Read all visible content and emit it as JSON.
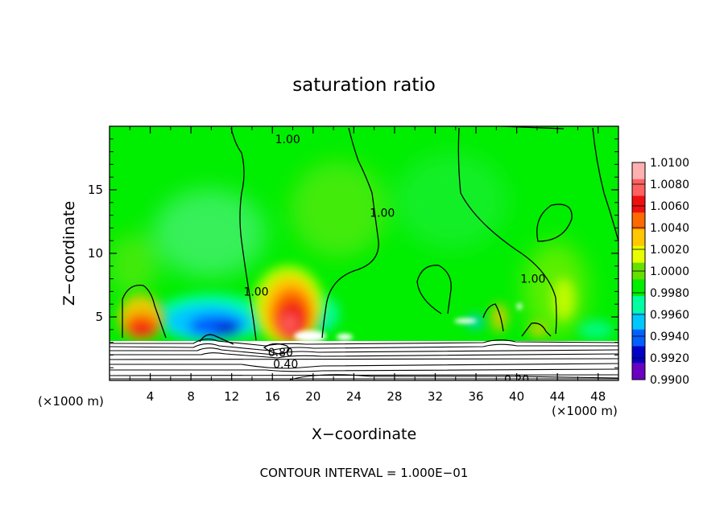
{
  "chart_data": {
    "type": "heatmap",
    "title": "saturation ratio",
    "xlabel": "X−coordinate",
    "ylabel": "Z−coordinate",
    "x_unit_label_left": "(×1000 m)",
    "x_unit_label_right": "(×1000 m)",
    "footer": "CONTOUR INTERVAL = 1.000E−01",
    "xlim": [
      0,
      50
    ],
    "ylim": [
      0,
      20
    ],
    "x_ticks": [
      4,
      8,
      12,
      16,
      20,
      24,
      28,
      32,
      36,
      40,
      44,
      48
    ],
    "y_ticks": [
      5,
      10,
      15
    ],
    "grid": false,
    "legend_position": "right",
    "colorbar": {
      "levels": [
        "1.0100",
        "1.0080",
        "1.0060",
        "1.0040",
        "1.0020",
        "1.0000",
        "0.9980",
        "0.9960",
        "0.9940",
        "0.9920",
        "0.9900"
      ],
      "colors": [
        "#ffb0b0",
        "#ff6060",
        "#ee1010",
        "#ff6a00",
        "#ffc800",
        "#e8ff00",
        "#66e000",
        "#00ee00",
        "#00ffa0",
        "#00c8ff",
        "#0060ff",
        "#0000c8",
        "#6a00c0"
      ]
    },
    "contour_labels": [
      {
        "text": "1.00",
        "x": 17.5,
        "z": 19.0
      },
      {
        "text": "1.00",
        "x": 26.8,
        "z": 13.2
      },
      {
        "text": "1.00",
        "x": 14.4,
        "z": 7.0
      },
      {
        "text": "1.00",
        "x": 41.6,
        "z": 8.0
      },
      {
        "text": "0.80",
        "x": 16.8,
        "z": 2.2
      },
      {
        "text": "0.40",
        "x": 17.3,
        "z": 1.3
      },
      {
        "text": "0.20",
        "x": 40.0,
        "z": 0.1
      }
    ],
    "hotspots": [
      {
        "x": 3.2,
        "z": 4.2,
        "value": 1.008
      },
      {
        "x": 17.0,
        "z": 5.0,
        "value": 1.008
      },
      {
        "x": 11.0,
        "z": 4.5,
        "value": 0.992
      },
      {
        "x": 8.0,
        "z": 5.5,
        "value": 0.995
      },
      {
        "x": 21.0,
        "z": 5.8,
        "value": 0.995
      },
      {
        "x": 44.0,
        "z": 8.0,
        "value": 1.003
      },
      {
        "x": 2.0,
        "z": 6.0,
        "value": 1.003
      },
      {
        "x": 38.5,
        "z": 5.0,
        "value": 1.003
      }
    ]
  }
}
